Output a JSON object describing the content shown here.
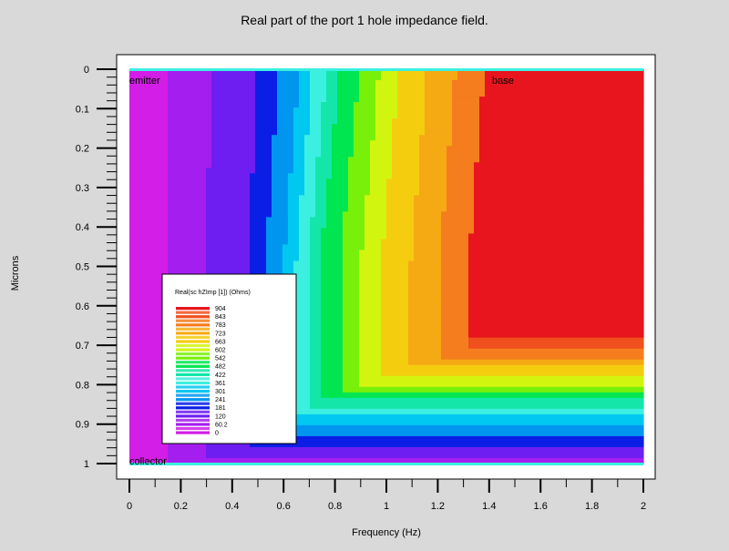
{
  "chart_data": {
    "type": "heatmap",
    "title": "Real part of the port 1 hole impedance field.",
    "xlabel": "Frequency (Hz)",
    "ylabel": "Microns",
    "xlim": [
      0,
      2
    ],
    "ylim": [
      0,
      1
    ],
    "y_inverted": true,
    "x_ticks": [
      "0",
      "0.2",
      "0.4",
      "0.6",
      "0.8",
      "1",
      "1.2",
      "1.4",
      "1.6",
      "1.8",
      "2"
    ],
    "y_ticks": [
      "0",
      "0.1",
      "0.2",
      "0.3",
      "0.4",
      "0.5",
      "0.6",
      "0.7",
      "0.8",
      "0.9",
      "1"
    ],
    "annotations": [
      {
        "text": "emitter",
        "x": 0,
        "y": 0.03
      },
      {
        "text": "base",
        "x": 1.4,
        "y": 0.03
      },
      {
        "text": "collector",
        "x": 0,
        "y": 0.995
      }
    ],
    "legend": {
      "title": "Real(sc hZImp [1]) (Ohms)",
      "levels": [
        "904",
        "843",
        "783",
        "723",
        "663",
        "602",
        "542",
        "482",
        "422",
        "361",
        "301",
        "241",
        "181",
        "120",
        "60.2",
        "0"
      ],
      "colors": [
        "#e8141e",
        "#f0501e",
        "#f57d1e",
        "#f5aa14",
        "#f5cd0f",
        "#d2f50f",
        "#78f00a",
        "#00e650",
        "#14e6aa",
        "#3cf0e1",
        "#00c8f0",
        "#0096f0",
        "#0a1ee6",
        "#6e1ef0",
        "#a51ef0",
        "#d21ee6"
      ]
    },
    "contour_boundaries_x": [
      {
        "level": "60.2",
        "x_at_top": 0.14,
        "x_at_mid": 0.14
      },
      {
        "level": "181",
        "x_at_top": 0.5,
        "x_at_mid": 0.46
      },
      {
        "level": "301",
        "x_at_top": 0.66,
        "x_at_mid": 0.6
      },
      {
        "level": "482",
        "x_at_top": 0.82,
        "x_at_mid": 0.74
      },
      {
        "level": "663",
        "x_at_top": 1.05,
        "x_at_mid": 0.98
      },
      {
        "level": "843",
        "x_at_top": 1.38,
        "x_at_mid": 1.32
      }
    ],
    "contour_boundaries_y_at_x2": [
      {
        "level": "904",
        "y": 0.68
      },
      {
        "level": "663",
        "y": 0.78
      },
      {
        "level": "482",
        "y": 0.84
      },
      {
        "level": "301",
        "y": 0.9
      },
      {
        "level": "181",
        "y": 0.965
      }
    ]
  }
}
